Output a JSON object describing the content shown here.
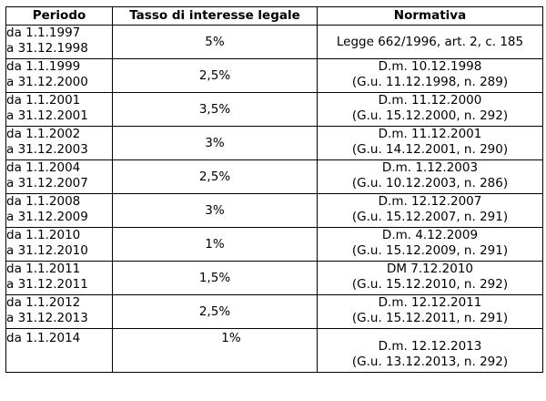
{
  "headers": {
    "period": "Periodo",
    "rate": "Tasso di interesse legale",
    "norm": "Normativa"
  },
  "rows": [
    {
      "from": "da 1.1.1997",
      "to": "a 31.12.1998",
      "rate": "5%",
      "norm1": "Legge 662/1996, art. 2, c. 185",
      "norm2": ""
    },
    {
      "from": "da 1.1.1999",
      "to": "a 31.12.2000",
      "rate": "2,5%",
      "norm1": "D.m. 10.12.1998",
      "norm2": "(G.u. 11.12.1998, n. 289)"
    },
    {
      "from": "da 1.1.2001",
      "to": "a 31.12.2001",
      "rate": "3,5%",
      "norm1": "D.m. 11.12.2000",
      "norm2": "(G.u. 15.12.2000, n. 292)"
    },
    {
      "from": "da 1.1.2002",
      "to": "a 31.12.2003",
      "rate": "3%",
      "norm1": "D.m. 11.12.2001",
      "norm2": "(G.u. 14.12.2001, n. 290)"
    },
    {
      "from": "da 1.1.2004",
      "to": "a 31.12.2007",
      "rate": "2,5%",
      "norm1": "D.m. 1.12.2003",
      "norm2": "(G.u. 10.12.2003, n. 286)"
    },
    {
      "from": "da 1.1.2008",
      "to": "a 31.12.2009",
      "rate": "3%",
      "norm1": "D.m. 12.12.2007",
      "norm2": "(G.u. 15.12.2007, n. 291)"
    },
    {
      "from": "da 1.1.2010",
      "to": "a 31.12.2010",
      "rate": "1%",
      "norm1": "D.m. 4.12.2009",
      "norm2": "(G.u. 15.12.2009, n. 291)"
    },
    {
      "from": "da 1.1.2011",
      "to": "a 31.12.2011",
      "rate": "1,5%",
      "norm1": "DM 7.12.2010",
      "norm2": "(G.u. 15.12.2010, n. 292)"
    },
    {
      "from": "da 1.1.2012",
      "to": "a 31.12.2013",
      "rate": "2,5%",
      "norm1": "D.m. 12.12.2011",
      "norm2": "(G.u. 15.12.2011, n. 291)"
    },
    {
      "from": "da 1.1.2014",
      "to": "",
      "rate": "1%",
      "norm1": "D.m. 12.12.2013",
      "norm2": "(G.u. 13.12.2013, n. 292)"
    }
  ]
}
